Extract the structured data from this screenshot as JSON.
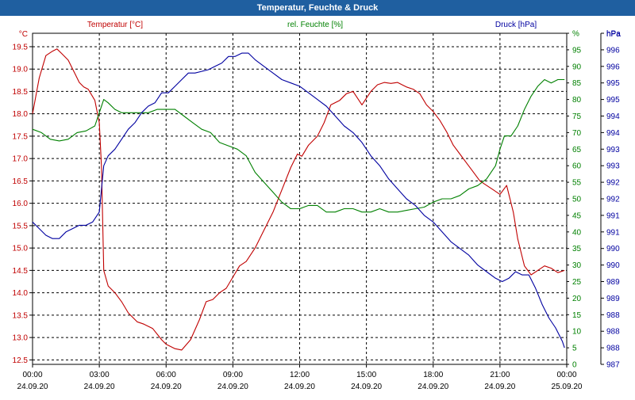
{
  "window": {
    "title": "Temperatur, Feuchte & Druck"
  },
  "chart_data": {
    "type": "line",
    "title": "Temperatur, Feuchte & Druck",
    "x_ticks": [
      {
        "hour": 0,
        "time": "00:00",
        "date": "24.09.20"
      },
      {
        "hour": 3,
        "time": "03:00",
        "date": "24.09.20"
      },
      {
        "hour": 6,
        "time": "06:00",
        "date": "24.09.20"
      },
      {
        "hour": 9,
        "time": "09:00",
        "date": "24.09.20"
      },
      {
        "hour": 12,
        "time": "12:00",
        "date": "24.09.20"
      },
      {
        "hour": 15,
        "time": "15:00",
        "date": "24.09.20"
      },
      {
        "hour": 18,
        "time": "18:00",
        "date": "24.09.20"
      },
      {
        "hour": 21,
        "time": "21:00",
        "date": "24.09.20"
      },
      {
        "hour": 24,
        "time": "00:00",
        "date": "25.09.20"
      }
    ],
    "xlim": [
      0,
      24
    ],
    "grid": true,
    "colors": {
      "temperature": "#c00000",
      "humidity": "#008000",
      "pressure": "#0000a0"
    },
    "axes": {
      "left": {
        "unit": "°C",
        "range": [
          12.4,
          19.8
        ],
        "ticks": [
          "12.5",
          "13.0",
          "13.5",
          "14.0",
          "14.5",
          "15.0",
          "15.5",
          "16.0",
          "16.5",
          "17.0",
          "17.5",
          "18.0",
          "18.5",
          "19.0",
          "19.5"
        ]
      },
      "mid": {
        "unit": "%",
        "range": [
          0,
          100
        ],
        "ticks": [
          "0",
          "5",
          "10",
          "15",
          "20",
          "25",
          "30",
          "35",
          "40",
          "45",
          "50",
          "55",
          "60",
          "65",
          "70",
          "75",
          "80",
          "85",
          "90",
          "95",
          "%"
        ]
      },
      "right": {
        "unit": "hPa",
        "ticks": [
          "987",
          "988",
          "988",
          "988",
          "989",
          "989",
          "990",
          "990",
          "991",
          "991",
          "992",
          "992",
          "993",
          "993",
          "994",
          "994",
          "995",
          "995",
          "996",
          "996",
          "hPa"
        ]
      }
    },
    "series": [
      {
        "name": "Temperatur [°C]",
        "axis": "left",
        "x": [
          0,
          0.3,
          0.6,
          0.9,
          1.1,
          1.3,
          1.6,
          1.9,
          2.1,
          2.3,
          2.5,
          2.8,
          3.0,
          3.1,
          3.2,
          3.4,
          3.7,
          4.0,
          4.3,
          4.7,
          5.0,
          5.4,
          5.8,
          6.0,
          6.4,
          6.7,
          7.1,
          7.5,
          7.8,
          8.1,
          8.4,
          8.7,
          9.0,
          9.3,
          9.6,
          10.0,
          10.4,
          10.8,
          11.2,
          11.6,
          11.9,
          12.1,
          12.4,
          12.8,
          13.1,
          13.4,
          13.8,
          14.1,
          14.4,
          14.8,
          15.2,
          15.5,
          15.8,
          16.1,
          16.4,
          16.8,
          17.1,
          17.4,
          17.7,
          18.0,
          18.3,
          18.6,
          18.9,
          19.2,
          19.5,
          19.8,
          20.1,
          20.4,
          20.7,
          21.0,
          21.3,
          21.6,
          21.8,
          22.1,
          22.4,
          22.7,
          23.0,
          23.3,
          23.6,
          23.9
        ],
        "y": [
          18.0,
          18.8,
          19.3,
          19.4,
          19.45,
          19.35,
          19.2,
          18.9,
          18.7,
          18.6,
          18.55,
          18.3,
          17.8,
          16.8,
          14.5,
          14.15,
          14.0,
          13.8,
          13.55,
          13.35,
          13.3,
          13.2,
          12.95,
          12.85,
          12.75,
          12.72,
          12.95,
          13.4,
          13.8,
          13.85,
          14.0,
          14.1,
          14.35,
          14.6,
          14.7,
          15.0,
          15.4,
          15.8,
          16.3,
          16.8,
          17.1,
          17.05,
          17.3,
          17.5,
          17.8,
          18.2,
          18.3,
          18.45,
          18.5,
          18.2,
          18.5,
          18.65,
          18.7,
          18.68,
          18.7,
          18.6,
          18.55,
          18.45,
          18.2,
          18.05,
          17.85,
          17.6,
          17.3,
          17.1,
          16.9,
          16.7,
          16.5,
          16.4,
          16.3,
          16.2,
          16.4,
          15.8,
          15.2,
          14.6,
          14.4,
          14.5,
          14.6,
          14.55,
          14.45,
          14.5
        ]
      },
      {
        "name": "rel. Feuchte [%]",
        "axis": "mid",
        "x": [
          0,
          0.4,
          0.8,
          1.2,
          1.6,
          2.0,
          2.4,
          2.8,
          3.0,
          3.2,
          3.4,
          3.7,
          4.0,
          4.4,
          4.8,
          5.2,
          5.6,
          6.0,
          6.4,
          6.8,
          7.2,
          7.6,
          8.0,
          8.4,
          8.8,
          9.2,
          9.6,
          10.0,
          10.4,
          10.8,
          11.2,
          11.6,
          12.0,
          12.4,
          12.8,
          13.2,
          13.6,
          14.0,
          14.4,
          14.8,
          15.2,
          15.6,
          16.0,
          16.4,
          16.8,
          17.2,
          17.6,
          18.0,
          18.4,
          18.8,
          19.2,
          19.6,
          20.0,
          20.4,
          20.8,
          21.0,
          21.2,
          21.5,
          21.8,
          22.1,
          22.4,
          22.7,
          23.0,
          23.3,
          23.6,
          23.9
        ],
        "y": [
          71,
          70,
          68,
          67.5,
          68,
          70,
          70.5,
          72,
          76,
          80,
          79,
          77,
          76,
          76,
          76,
          76,
          77,
          77,
          77,
          75,
          73,
          71,
          70,
          67,
          66,
          65,
          63,
          58,
          55,
          52,
          49,
          47,
          47,
          48,
          48,
          46,
          46,
          47,
          47,
          46,
          46,
          47,
          46,
          46,
          46.5,
          47,
          47.5,
          49,
          50,
          50,
          51,
          53,
          54,
          56,
          60,
          65,
          69,
          69,
          72,
          77,
          81,
          84,
          86,
          85,
          86,
          86
        ]
      },
      {
        "name": "Druck [hPa]",
        "axis": "right",
        "x": [
          0,
          0.3,
          0.6,
          0.9,
          1.2,
          1.5,
          1.8,
          2.1,
          2.4,
          2.7,
          3.0,
          3.2,
          3.4,
          3.7,
          4.0,
          4.3,
          4.6,
          4.9,
          5.2,
          5.5,
          5.8,
          6.1,
          6.4,
          6.7,
          7.0,
          7.3,
          7.6,
          7.9,
          8.2,
          8.5,
          8.8,
          9.1,
          9.4,
          9.7,
          10.0,
          10.4,
          10.8,
          11.2,
          11.6,
          12.0,
          12.4,
          12.8,
          13.2,
          13.6,
          14.0,
          14.4,
          14.8,
          15.2,
          15.6,
          16.0,
          16.4,
          16.8,
          17.2,
          17.6,
          18.0,
          18.4,
          18.8,
          19.2,
          19.6,
          20.0,
          20.4,
          20.8,
          21.1,
          21.4,
          21.7,
          22.0,
          22.3,
          22.6,
          22.9,
          23.2,
          23.5,
          23.8,
          23.9
        ],
        "y": [
          43,
          41,
          39,
          38,
          38,
          40,
          41,
          42,
          42,
          43,
          46,
          60,
          63,
          65,
          68,
          71,
          73,
          76,
          78,
          79,
          82,
          82,
          84,
          86,
          88,
          88,
          88.5,
          89,
          90,
          91,
          93,
          93,
          94,
          94,
          92,
          90,
          88,
          86,
          85,
          84,
          82,
          80,
          78,
          75,
          72,
          70,
          67,
          63,
          60,
          56,
          53,
          50,
          48,
          45,
          43,
          40,
          37,
          35,
          33,
          30,
          28,
          26,
          25,
          26,
          28,
          27,
          27,
          23,
          18,
          14,
          11,
          7,
          5
        ]
      }
    ]
  }
}
